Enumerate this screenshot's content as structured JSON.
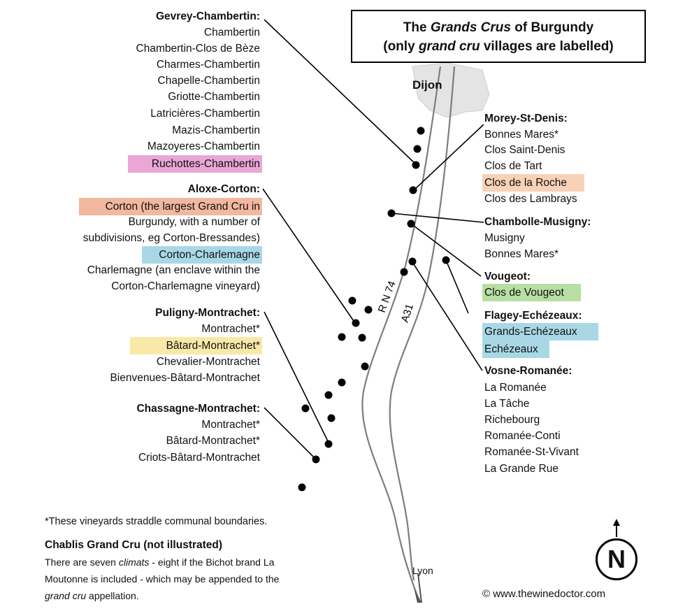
{
  "title": {
    "line1_pre": "The ",
    "line1_em": "Grands Crus",
    "line1_post": " of Burgundy",
    "line2_pre": "(only ",
    "line2_em": "grand cru",
    "line2_post": " villages are labelled)"
  },
  "places": {
    "dijon": "Dijon",
    "lyon": "Lyon",
    "rn74": "R N 74",
    "a31": "A31"
  },
  "colors": {
    "pink": "#e9a6d6",
    "salmon": "#f2b79f",
    "peach": "#f7d2b6",
    "blue": "#a8d8e6",
    "green": "#b7dfa3",
    "yellow": "#f8e9a8"
  },
  "left": {
    "gevrey": {
      "name": "Gevrey-Chambertin:",
      "crus": [
        "Chambertin",
        "Chambertin-Clos de Bèze",
        "Charmes-Chambertin",
        "Chapelle-Chambertin",
        "Griotte-Chambertin",
        "Latricières-Chambertin",
        "Mazis-Chambertin",
        "Mazoyeres-Chambertin",
        "Ruchottes-Chambertin"
      ]
    },
    "aloxe": {
      "name": "Aloxe-Corton:",
      "lines": [
        "Corton (the largest Grand Cru in",
        "Burgundy, with a number of",
        "subdivisions, eg Corton-Bressandes)",
        "Corton-Charlemagne",
        "Charlemagne (an enclave within the",
        "Corton-Charlemagne vineyard)"
      ]
    },
    "puligny": {
      "name": "Puligny-Montrachet:",
      "crus": [
        "Montrachet*",
        "Bâtard-Montrachet*",
        "Chevalier-Montrachet",
        "Bienvenues-Bâtard-Montrachet"
      ]
    },
    "chassagne": {
      "name": "Chassagne-Montrachet:",
      "crus": [
        "Montrachet*",
        "Bâtard-Montrachet*",
        "Criots-Bâtard-Montrachet"
      ]
    }
  },
  "right": {
    "morey": {
      "name": "Morey-St-Denis:",
      "crus": [
        "Bonnes Mares*",
        "Clos Saint-Denis",
        "Clos de Tart",
        "Clos de la Roche",
        "Clos des Lambrays"
      ]
    },
    "chambolle": {
      "name": "Chambolle-Musigny:",
      "crus": [
        "Musigny",
        "Bonnes Mares*"
      ]
    },
    "vougeot": {
      "name": "Vougeot:",
      "crus": [
        "Clos de Vougeot"
      ]
    },
    "flagey": {
      "name": "Flagey-Echézeaux:",
      "crus": [
        "Grands-Echézeaux",
        "Echézeaux"
      ]
    },
    "vosne": {
      "name": "Vosne-Romanée:",
      "crus": [
        "La Romanée",
        "La Tâche",
        "Richebourg",
        "Romanée-Conti",
        "Romanée-St-Vivant",
        "La Grande Rue"
      ]
    }
  },
  "footnote": "*These vineyards straddle communal boundaries.",
  "chablis": {
    "heading": "Chablis Grand Cru (not illustrated)",
    "l1_pre": "There are seven ",
    "l1_em": "climats",
    "l1_post": " - eight if the Bichot brand La",
    "l2": "Moutonne is included - which may be appended to the",
    "l3_em": "grand cru",
    "l3_post": " appellation."
  },
  "compass": "N",
  "credit": "© www.thewinedoctor.com"
}
